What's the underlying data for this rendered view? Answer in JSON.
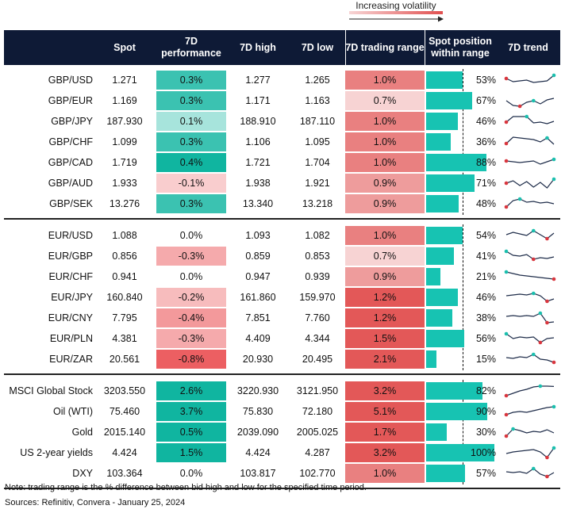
{
  "legend": {
    "label": "Increasing volatility"
  },
  "headers": {
    "spot": "Spot",
    "perf": "7D performance",
    "high": "7D high",
    "low": "7D low",
    "range": "7D trading range",
    "position": "Spot position within range",
    "trend": "7D trend"
  },
  "groups": [
    {
      "rows": [
        {
          "name": "GBP/USD",
          "spot": "1.271",
          "perf": "0.3%",
          "perf_value": 0.3,
          "high": "1.277",
          "low": "1.265",
          "range": "1.0%",
          "range_value": 1.0,
          "position": "53%",
          "position_value": 53,
          "trend": [
            0.6,
            0.4,
            0.45,
            0.5,
            0.35,
            0.4,
            0.45,
            0.8
          ],
          "trend_high": 7,
          "trend_low": 0
        },
        {
          "name": "GBP/EUR",
          "spot": "1.169",
          "perf": "0.3%",
          "perf_value": 0.3,
          "high": "1.171",
          "low": "1.163",
          "range": "0.7%",
          "range_value": 0.7,
          "position": "67%",
          "position_value": 67,
          "trend": [
            0.5,
            0.2,
            0.15,
            0.4,
            0.5,
            0.3,
            0.55,
            0.65
          ],
          "trend_high": 4,
          "trend_low": 2
        },
        {
          "name": "GBP/JPY",
          "spot": "187.930",
          "perf": "0.1%",
          "perf_value": 0.1,
          "high": "188.910",
          "low": "187.110",
          "range": "1.0%",
          "range_value": 1.0,
          "position": "46%",
          "position_value": 46,
          "trend": [
            0.45,
            0.8,
            0.8,
            0.8,
            0.4,
            0.45,
            0.35,
            0.5
          ],
          "trend_high": 3,
          "trend_low": 0
        },
        {
          "name": "GBP/CHF",
          "spot": "1.099",
          "perf": "0.3%",
          "perf_value": 0.3,
          "high": "1.106",
          "low": "1.095",
          "range": "1.0%",
          "range_value": 1.0,
          "position": "36%",
          "position_value": 36,
          "trend": [
            0.4,
            0.8,
            0.75,
            0.7,
            0.65,
            0.5,
            0.75,
            0.35
          ],
          "trend_high": 6,
          "trend_low": 0
        },
        {
          "name": "GBP/CAD",
          "spot": "1.719",
          "perf": "0.4%",
          "perf_value": 0.4,
          "high": "1.721",
          "low": "1.704",
          "range": "1.0%",
          "range_value": 1.0,
          "position": "88%",
          "position_value": 88,
          "trend": [
            0.6,
            0.55,
            0.5,
            0.55,
            0.6,
            0.4,
            0.55,
            0.7
          ],
          "trend_high": 7,
          "trend_low": 0
        },
        {
          "name": "GBP/AUD",
          "spot": "1.933",
          "perf": "-0.1%",
          "perf_value": -0.1,
          "high": "1.938",
          "low": "1.921",
          "range": "0.9%",
          "range_value": 0.9,
          "position": "71%",
          "position_value": 71,
          "trend": [
            0.5,
            0.65,
            0.35,
            0.6,
            0.25,
            0.55,
            0.2,
            0.75
          ],
          "trend_high": 7,
          "trend_low": 0
        },
        {
          "name": "GBP/SEK",
          "spot": "13.276",
          "perf": "0.3%",
          "perf_value": 0.3,
          "high": "13.340",
          "low": "13.218",
          "range": "0.9%",
          "range_value": 0.9,
          "position": "48%",
          "position_value": 48,
          "trend": [
            0.3,
            0.7,
            0.8,
            0.6,
            0.65,
            0.55,
            0.6,
            0.5
          ],
          "trend_high": 2,
          "trend_low": 0
        }
      ]
    },
    {
      "rows": [
        {
          "name": "EUR/USD",
          "spot": "1.088",
          "perf": "0.0%",
          "perf_value": 0.0,
          "high": "1.093",
          "low": "1.082",
          "range": "1.0%",
          "range_value": 1.0,
          "position": "54%",
          "position_value": 54,
          "trend": [
            0.55,
            0.7,
            0.6,
            0.5,
            0.8,
            0.55,
            0.3,
            0.65
          ],
          "trend_high": 4,
          "trend_low": 6
        },
        {
          "name": "EUR/GBP",
          "spot": "0.856",
          "perf": "-0.3%",
          "perf_value": -0.3,
          "high": "0.859",
          "low": "0.853",
          "range": "0.7%",
          "range_value": 0.7,
          "position": "41%",
          "position_value": 41,
          "trend": [
            0.8,
            0.55,
            0.5,
            0.6,
            0.3,
            0.4,
            0.35,
            0.45
          ],
          "trend_high": 0,
          "trend_low": 4
        },
        {
          "name": "EUR/CHF",
          "spot": "0.941",
          "perf": "0.0%",
          "perf_value": 0.0,
          "high": "0.947",
          "low": "0.939",
          "range": "0.9%",
          "range_value": 0.9,
          "position": "21%",
          "position_value": 21,
          "trend": [
            0.8,
            0.7,
            0.6,
            0.55,
            0.5,
            0.45,
            0.4,
            0.35
          ],
          "trend_high": 0,
          "trend_low": 7
        },
        {
          "name": "EUR/JPY",
          "spot": "160.840",
          "perf": "-0.2%",
          "perf_value": -0.2,
          "high": "161.860",
          "low": "159.970",
          "range": "1.2%",
          "range_value": 1.2,
          "position": "46%",
          "position_value": 46,
          "trend": [
            0.6,
            0.65,
            0.7,
            0.65,
            0.75,
            0.6,
            0.25,
            0.4
          ],
          "trend_high": 4,
          "trend_low": 6
        },
        {
          "name": "EUR/CNY",
          "spot": "7.795",
          "perf": "-0.4%",
          "perf_value": -0.4,
          "high": "7.851",
          "low": "7.760",
          "range": "1.2%",
          "range_value": 1.2,
          "position": "38%",
          "position_value": 38,
          "trend": [
            0.6,
            0.65,
            0.6,
            0.65,
            0.6,
            0.8,
            0.2,
            0.25
          ],
          "trend_high": 5,
          "trend_low": 6
        },
        {
          "name": "EUR/PLN",
          "spot": "4.381",
          "perf": "-0.3%",
          "perf_value": -0.3,
          "high": "4.409",
          "low": "4.344",
          "range": "1.5%",
          "range_value": 1.5,
          "position": "56%",
          "position_value": 56,
          "trend": [
            0.8,
            0.5,
            0.6,
            0.55,
            0.6,
            0.25,
            0.5,
            0.55
          ],
          "trend_high": 0,
          "trend_low": 5
        },
        {
          "name": "EUR/ZAR",
          "spot": "20.561",
          "perf": "-0.8%",
          "perf_value": -0.8,
          "high": "20.930",
          "low": "20.495",
          "range": "2.1%",
          "range_value": 2.1,
          "position": "15%",
          "position_value": 15,
          "trend": [
            0.6,
            0.55,
            0.65,
            0.6,
            0.8,
            0.5,
            0.45,
            0.3
          ],
          "trend_high": 4,
          "trend_low": 7
        }
      ]
    },
    {
      "rows": [
        {
          "name": "MSCI Global Stock",
          "spot": "3203.550",
          "perf": "2.6%",
          "perf_value": 2.6,
          "high": "3220.930",
          "low": "3121.950",
          "range": "3.2%",
          "range_value": 3.2,
          "position": "82%",
          "position_value": 82,
          "trend": [
            0.2,
            0.35,
            0.5,
            0.6,
            0.75,
            0.8,
            0.8,
            0.78
          ],
          "trend_high": 5,
          "trend_low": 0
        },
        {
          "name": "Oil (WTI)",
          "spot": "75.460",
          "perf": "3.7%",
          "perf_value": 3.7,
          "high": "75.830",
          "low": "72.180",
          "range": "5.1%",
          "range_value": 5.1,
          "position": "90%",
          "position_value": 90,
          "trend": [
            0.3,
            0.45,
            0.5,
            0.45,
            0.55,
            0.65,
            0.75,
            0.8
          ],
          "trend_high": 7,
          "trend_low": 0
        },
        {
          "name": "Gold",
          "spot": "2015.140",
          "perf": "0.5%",
          "perf_value": 0.5,
          "high": "2039.090",
          "low": "2005.025",
          "range": "1.7%",
          "range_value": 1.7,
          "position": "30%",
          "position_value": 30,
          "trend": [
            0.25,
            0.7,
            0.6,
            0.45,
            0.55,
            0.5,
            0.65,
            0.45
          ],
          "trend_high": 1,
          "trend_low": 0
        },
        {
          "name": "US 2-year yields",
          "spot": "4.424",
          "perf": "1.5%",
          "perf_value": 1.5,
          "high": "4.424",
          "low": "4.287",
          "range": "3.2%",
          "range_value": 3.2,
          "position": "100%",
          "position_value": 100,
          "trend": [
            0.45,
            0.55,
            0.6,
            0.65,
            0.7,
            0.55,
            0.2,
            0.8
          ],
          "trend_high": 7,
          "trend_low": 6
        },
        {
          "name": "DXY",
          "spot": "103.364",
          "perf": "0.0%",
          "perf_value": 0.0,
          "high": "103.817",
          "low": "102.770",
          "range": "1.0%",
          "range_value": 1.0,
          "position": "57%",
          "position_value": 57,
          "trend": [
            0.6,
            0.55,
            0.6,
            0.5,
            0.8,
            0.45,
            0.3,
            0.55
          ],
          "trend_high": 4,
          "trend_low": 6
        }
      ]
    }
  ],
  "colors": {
    "header_bg": "#0e1a36",
    "position_bar": "#17c3b2",
    "trend_line": "#1f2d4a",
    "trend_high": "#1bbfae",
    "trend_low": "#d9363e",
    "perf_positive": "#10b5a0",
    "perf_negative": "#ec5f62",
    "range_scale": "#e14f4f"
  },
  "footnotes": {
    "note": "Note: trading range is the % difference between bid high and low for the specified time period.",
    "sources": "Sources: Refinitiv, Convera - January 25, 2024"
  },
  "chart_data": {
    "type": "table",
    "columns": [
      "Spot",
      "7D performance",
      "7D high",
      "7D low",
      "7D trading range",
      "Spot position within range",
      "7D trend"
    ],
    "rows": [
      [
        "GBP/USD",
        1.271,
        0.3,
        1.277,
        1.265,
        1.0,
        53
      ],
      [
        "GBP/EUR",
        1.169,
        0.3,
        1.171,
        1.163,
        0.7,
        67
      ],
      [
        "GBP/JPY",
        187.93,
        0.1,
        188.91,
        187.11,
        1.0,
        46
      ],
      [
        "GBP/CHF",
        1.099,
        0.3,
        1.106,
        1.095,
        1.0,
        36
      ],
      [
        "GBP/CAD",
        1.719,
        0.4,
        1.721,
        1.704,
        1.0,
        88
      ],
      [
        "GBP/AUD",
        1.933,
        -0.1,
        1.938,
        1.921,
        0.9,
        71
      ],
      [
        "GBP/SEK",
        13.276,
        0.3,
        13.34,
        13.218,
        0.9,
        48
      ],
      [
        "EUR/USD",
        1.088,
        0.0,
        1.093,
        1.082,
        1.0,
        54
      ],
      [
        "EUR/GBP",
        0.856,
        -0.3,
        0.859,
        0.853,
        0.7,
        41
      ],
      [
        "EUR/CHF",
        0.941,
        0.0,
        0.947,
        0.939,
        0.9,
        21
      ],
      [
        "EUR/JPY",
        160.84,
        -0.2,
        161.86,
        159.97,
        1.2,
        46
      ],
      [
        "EUR/CNY",
        7.795,
        -0.4,
        7.851,
        7.76,
        1.2,
        38
      ],
      [
        "EUR/PLN",
        4.381,
        -0.3,
        4.409,
        4.344,
        1.5,
        56
      ],
      [
        "EUR/ZAR",
        20.561,
        -0.8,
        20.93,
        20.495,
        2.1,
        15
      ],
      [
        "MSCI Global Stock",
        3203.55,
        2.6,
        3220.93,
        3121.95,
        3.2,
        82
      ],
      [
        "Oil (WTI)",
        75.46,
        3.7,
        75.83,
        72.18,
        5.1,
        90
      ],
      [
        "Gold",
        2015.14,
        0.5,
        2039.09,
        2005.025,
        1.7,
        30
      ],
      [
        "US 2-year yields",
        4.424,
        1.5,
        4.424,
        4.287,
        3.2,
        100
      ],
      [
        "DXY",
        103.364,
        0.0,
        103.817,
        102.77,
        1.0,
        57
      ]
    ]
  }
}
